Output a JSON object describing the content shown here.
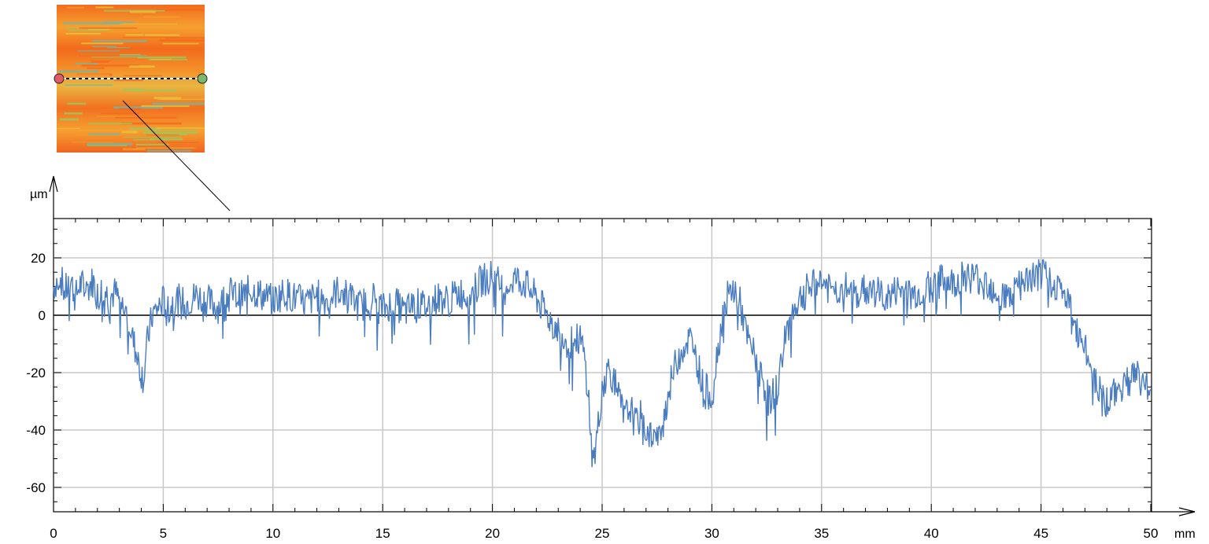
{
  "chart_data": {
    "type": "line",
    "title": "",
    "xlabel": "mm",
    "ylabel": "µm",
    "xlim": [
      0,
      50
    ],
    "ylim": [
      -68,
      33
    ],
    "x_ticks": [
      0,
      5,
      10,
      15,
      20,
      25,
      30,
      35,
      40,
      45,
      50
    ],
    "x_tick_labels": [
      "0",
      "5",
      "10",
      "15",
      "20",
      "25",
      "30",
      "35",
      "40",
      "45",
      "50"
    ],
    "y_ticks": [
      20,
      0,
      -20,
      -40,
      -60
    ],
    "y_tick_labels": [
      "20",
      "0",
      "-20",
      "-40",
      "-60"
    ],
    "grid": true,
    "zero_line": true,
    "series": [
      {
        "color": "#4a7cc0",
        "x": [
          0,
          0.3,
          0.5,
          0.8,
          1.0,
          1.2,
          1.5,
          1.8,
          2.0,
          2.3,
          2.5,
          2.8,
          3.0,
          3.2,
          3.4,
          3.6,
          3.8,
          4.0,
          4.1,
          4.2,
          4.3,
          4.5,
          4.8,
          5.0,
          5.3,
          5.5,
          6.0,
          6.5,
          7.0,
          7.5,
          8.0,
          8.5,
          9.0,
          9.5,
          10.0,
          10.5,
          11.0,
          11.5,
          12.0,
          12.5,
          13.0,
          13.5,
          14.0,
          14.5,
          15.0,
          15.5,
          16.0,
          16.5,
          17.0,
          17.5,
          18.0,
          18.5,
          19.0,
          19.5,
          20.0,
          20.5,
          21.0,
          21.5,
          22.0,
          22.5,
          23.0,
          23.5,
          24.0,
          24.2,
          24.4,
          24.5,
          24.6,
          24.8,
          25.0,
          25.3,
          25.5,
          25.8,
          26.0,
          26.3,
          26.5,
          26.8,
          27.0,
          27.3,
          27.6,
          28.0,
          28.3,
          28.6,
          29.0,
          29.3,
          29.6,
          30.0,
          30.3,
          30.6,
          31.0,
          31.3,
          31.6,
          32.0,
          32.3,
          32.6,
          33.0,
          33.3,
          33.6,
          34.0,
          34.5,
          35.0,
          35.5,
          36.0,
          36.5,
          37.0,
          37.5,
          38.0,
          38.5,
          39.0,
          39.5,
          40.0,
          40.5,
          41.0,
          41.5,
          42.0,
          42.5,
          43.0,
          43.5,
          44.0,
          44.5,
          45.0,
          45.5,
          46.0,
          46.3,
          46.6,
          47.0,
          47.3,
          47.6,
          48.0,
          48.3,
          48.6,
          49.0,
          49.3,
          49.6,
          50.0
        ],
        "values": [
          10,
          14,
          8,
          12,
          6,
          11,
          9,
          12,
          7,
          10,
          6,
          8,
          5,
          2,
          0,
          -8,
          -14,
          -20,
          -22,
          -15,
          -8,
          0,
          3,
          5,
          2,
          6,
          4,
          7,
          5,
          3,
          8,
          6,
          9,
          7,
          5,
          8,
          6,
          4,
          7,
          5,
          9,
          6,
          3,
          7,
          2,
          5,
          1,
          4,
          3,
          6,
          5,
          8,
          7,
          12,
          14,
          9,
          13,
          11,
          6,
          0,
          -5,
          -10,
          -8,
          -15,
          -30,
          -45,
          -52,
          -40,
          -25,
          -18,
          -22,
          -30,
          -36,
          -32,
          -38,
          -35,
          -40,
          -42,
          -44,
          -28,
          -18,
          -12,
          -8,
          -15,
          -25,
          -28,
          -10,
          5,
          9,
          4,
          -8,
          -15,
          -22,
          -30,
          -25,
          -10,
          0,
          6,
          10,
          12,
          8,
          10,
          7,
          9,
          8,
          6,
          9,
          7,
          8,
          10,
          12,
          11,
          14,
          13,
          12,
          8,
          6,
          10,
          13,
          14,
          12,
          8,
          3,
          -5,
          -12,
          -18,
          -25,
          -30,
          -28,
          -25,
          -22,
          -20,
          -24,
          -22
        ]
      }
    ]
  },
  "inset_image": {
    "description_colors": [
      "#f26a1c",
      "#f59a2a",
      "#e8c23a",
      "#9ec85a",
      "#6fb8a8"
    ],
    "marker_left_color": "#e05a6a",
    "marker_right_color": "#7ab86a"
  }
}
